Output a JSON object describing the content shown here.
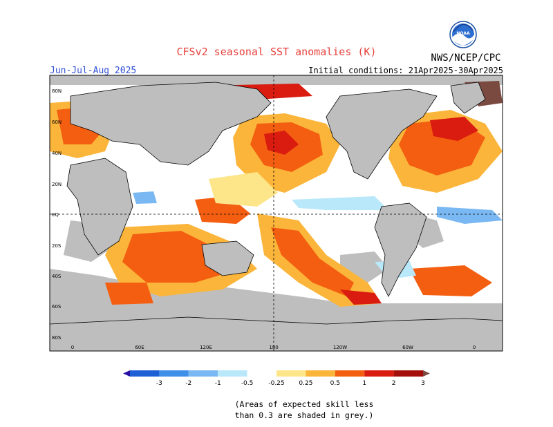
{
  "header": {
    "title": "CFSv2 seasonal SST anomalies (K)",
    "season": "Jun-Jul-Aug 2025",
    "initial_conditions": "Initial conditions: 21Apr2025-30Apr2025",
    "organization": "NWS/NCEP/CPC",
    "logo_text": "NOAA"
  },
  "map": {
    "lat_labels": [
      "80N",
      "60N",
      "40N",
      "20N",
      "EQ",
      "20S",
      "40S",
      "60S",
      "80S"
    ],
    "lon_labels": [
      "0",
      "60E",
      "120E",
      "180",
      "120W",
      "60W",
      "0"
    ],
    "colors": {
      "land": "#bebebe",
      "skill_mask": "#bebebe",
      "neutral": "#ffffff",
      "coast": "#000000"
    }
  },
  "colorbar": {
    "tick_labels": [
      "-3",
      "-2",
      "-1",
      "-0.5",
      "-0.25",
      "0.25",
      "0.5",
      "1",
      "2",
      "3"
    ],
    "colors": [
      "#2a0fa6",
      "#1f5fd6",
      "#3f8ee8",
      "#79b8f2",
      "#b9e8fb",
      "#ffffff",
      "#fde68a",
      "#fbb53a",
      "#f45e11",
      "#d91b10",
      "#a50f0b",
      "#7a4a41"
    ]
  },
  "footnote": {
    "line1": "(Areas of expected skill less",
    "line2": "than 0.3 are shaded in grey.)"
  }
}
